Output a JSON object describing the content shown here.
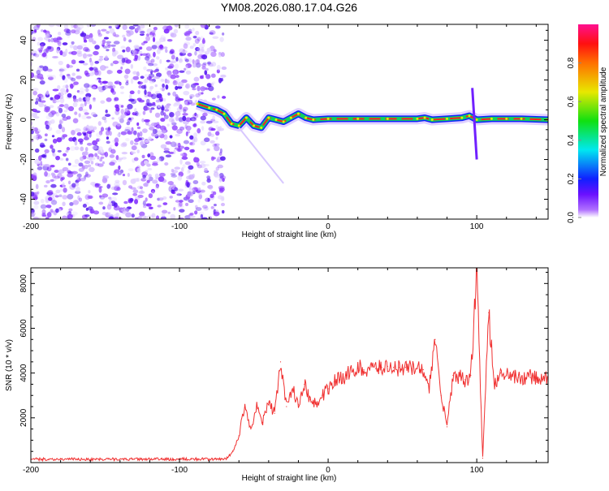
{
  "chart_data": [
    {
      "type": "heatmap",
      "title": "YM08.2026.080.17.04.G26",
      "xlabel": "Height of straight line (km)",
      "ylabel": "Frequency (Hz)",
      "xlim": [
        -200,
        148
      ],
      "ylim": [
        -50,
        48
      ],
      "xticks": [
        "-200",
        "-100",
        "0",
        "100"
      ],
      "yticks": [
        "-40",
        "-20",
        "0",
        "20",
        "40"
      ],
      "colorbar": {
        "label": "Normalized spectral amplitude",
        "range": [
          0,
          1
        ],
        "ticks": [
          "0.0",
          "0.2",
          "0.4",
          "0.6",
          "0.8"
        ]
      },
      "noise_region_x": [
        -200,
        -75
      ],
      "ridge": {
        "x": [
          -88,
          -80,
          -75,
          -70,
          -65,
          -60,
          -55,
          -50,
          -45,
          -40,
          -35,
          -30,
          -25,
          -20,
          -15,
          -10,
          0,
          20,
          40,
          60,
          65,
          70,
          80,
          90,
          95,
          100,
          110,
          120,
          130,
          148
        ],
        "freq": [
          8,
          6,
          5,
          3,
          -2,
          -3,
          1,
          -3,
          -4,
          1,
          0,
          -1,
          1,
          3,
          1,
          0,
          0.5,
          0.5,
          0.5,
          0.5,
          1,
          0,
          0.5,
          1,
          2,
          0,
          0.5,
          0.5,
          0.5,
          0
        ]
      }
    },
    {
      "type": "line",
      "xlabel": "Height of straight line (km)",
      "ylabel": "SNR (10 * v/v)",
      "xlim": [
        -200,
        148
      ],
      "ylim": [
        0,
        8700
      ],
      "xticks": [
        "-200",
        "-100",
        "0",
        "100"
      ],
      "yticks": [
        "2000",
        "4000",
        "6000",
        "8000"
      ],
      "color": "#f03030",
      "x_start": -200,
      "x_step": 4,
      "values": [
        150,
        150,
        150,
        150,
        150,
        150,
        150,
        150,
        150,
        150,
        150,
        150,
        150,
        150,
        150,
        150,
        150,
        150,
        150,
        150,
        150,
        150,
        150,
        150,
        150,
        150,
        150,
        150,
        150,
        150,
        150,
        150,
        150,
        200,
        500,
        1200,
        2600,
        1500,
        2500,
        1800,
        2700,
        2200,
        4500,
        2500,
        3300,
        2600,
        3500,
        2800,
        2600,
        3000,
        3300,
        3600,
        3700,
        3900,
        4100,
        4200,
        4150,
        4200,
        4200,
        4250,
        4300,
        4250,
        4250,
        4250,
        4200,
        4200,
        4150,
        3300,
        5500,
        3000,
        1600,
        3900,
        3900,
        3700,
        3900,
        8600,
        200,
        6700,
        3400,
        4000,
        3900,
        3850,
        3800,
        3800,
        3800,
        3750,
        3700,
        3700
      ]
    }
  ]
}
